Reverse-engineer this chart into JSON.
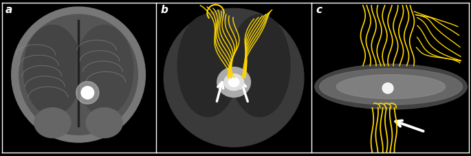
{
  "panel_labels": [
    "a",
    "b",
    "c"
  ],
  "label_color": "white",
  "label_fontsize": 11,
  "label_fontweight": "bold",
  "background_color": "black",
  "border_color": "white",
  "border_linewidth": 1,
  "fig_width": 6.85,
  "fig_height": 2.28,
  "dpi": 100,
  "arrow_color": "white",
  "tract_color": "#FFD700"
}
